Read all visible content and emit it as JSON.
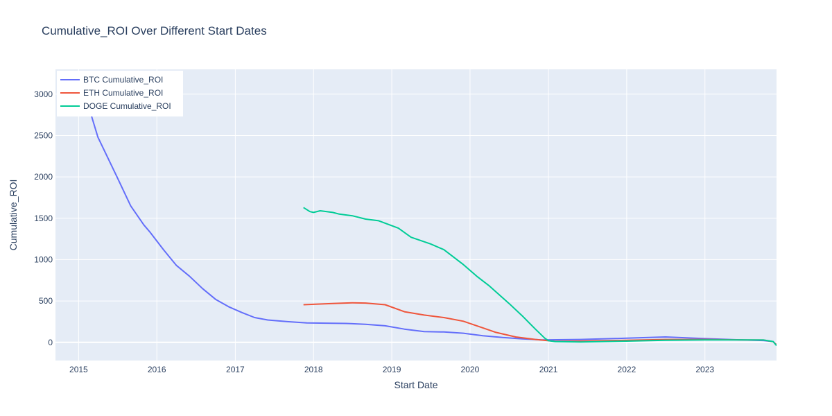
{
  "chart_data": {
    "type": "line",
    "title": "Cumulative_ROI Over Different Start Dates",
    "xlabel": "Start Date",
    "ylabel": "Cumulative_ROI",
    "xlim": [
      "2014-09-15",
      "2023-12-01"
    ],
    "ylim": [
      -220,
      3300
    ],
    "x_ticks": [
      "2015",
      "2016",
      "2017",
      "2018",
      "2019",
      "2020",
      "2021",
      "2022",
      "2023"
    ],
    "y_ticks": [
      0,
      500,
      1000,
      1500,
      2000,
      2500,
      3000
    ],
    "grid": true,
    "legend_position": "top-left",
    "colors": {
      "plot_bg": "#E5ECF6",
      "grid": "#ffffff",
      "text": "#2a3f5f"
    },
    "series": [
      {
        "name": "BTC Cumulative_ROI",
        "color": "#636EFA",
        "x": [
          "2015-01-01",
          "2015-04-01",
          "2015-07-01",
          "2015-09-01",
          "2015-11-01",
          "2015-12-01",
          "2016-02-01",
          "2016-04-01",
          "2016-06-01",
          "2016-08-01",
          "2016-10-01",
          "2016-12-01",
          "2017-02-01",
          "2017-04-01",
          "2017-06-01",
          "2017-09-01",
          "2017-12-01",
          "2018-03-01",
          "2018-06-01",
          "2018-09-01",
          "2018-12-01",
          "2019-03-01",
          "2019-06-01",
          "2019-09-01",
          "2019-12-01",
          "2020-03-01",
          "2020-06-01",
          "2020-09-01",
          "2020-12-01",
          "2021-06-01",
          "2022-01-01",
          "2022-07-01",
          "2023-01-01",
          "2023-07-01",
          "2023-10-01",
          "2023-11-15",
          "2023-12-01"
        ],
        "y": [
          3250,
          2480,
          1990,
          1650,
          1420,
          1330,
          1120,
          930,
          800,
          650,
          520,
          430,
          360,
          300,
          270,
          250,
          235,
          232,
          228,
          218,
          200,
          160,
          130,
          125,
          110,
          80,
          58,
          42,
          30,
          35,
          50,
          65,
          45,
          28,
          22,
          10,
          -30
        ]
      },
      {
        "name": "ETH Cumulative_ROI",
        "color": "#EF553B",
        "x": [
          "2017-11-15",
          "2018-01-01",
          "2018-04-01",
          "2018-07-01",
          "2018-09-01",
          "2018-12-01",
          "2019-03-01",
          "2019-06-01",
          "2019-09-01",
          "2019-12-01",
          "2020-03-01",
          "2020-05-01",
          "2020-08-01",
          "2020-11-01",
          "2021-02-01",
          "2021-06-01",
          "2022-01-01",
          "2022-07-01",
          "2023-01-01",
          "2023-07-01",
          "2023-10-01",
          "2023-11-15",
          "2023-12-01"
        ],
        "y": [
          455,
          460,
          470,
          478,
          475,
          455,
          370,
          330,
          300,
          255,
          175,
          120,
          65,
          35,
          12,
          15,
          25,
          35,
          35,
          30,
          28,
          8,
          -30
        ]
      },
      {
        "name": "DOGE Cumulative_ROI",
        "color": "#00CC96",
        "x": [
          "2017-11-15",
          "2017-12-15",
          "2018-01-01",
          "2018-02-01",
          "2018-04-01",
          "2018-05-01",
          "2018-07-01",
          "2018-09-01",
          "2018-11-01",
          "2019-02-01",
          "2019-04-01",
          "2019-07-01",
          "2019-09-01",
          "2019-12-01",
          "2020-02-01",
          "2020-04-01",
          "2020-07-01",
          "2020-09-01",
          "2020-11-01",
          "2020-12-15",
          "2021-01-01",
          "2021-02-01",
          "2021-06-01",
          "2022-01-01",
          "2022-07-01",
          "2023-01-01",
          "2023-07-01",
          "2023-10-01",
          "2023-11-15",
          "2023-12-01"
        ],
        "y": [
          1630,
          1580,
          1570,
          1590,
          1570,
          1550,
          1530,
          1490,
          1470,
          1380,
          1270,
          1190,
          1120,
          940,
          800,
          680,
          470,
          320,
          160,
          50,
          20,
          10,
          5,
          15,
          25,
          30,
          30,
          28,
          10,
          -40
        ]
      }
    ]
  }
}
